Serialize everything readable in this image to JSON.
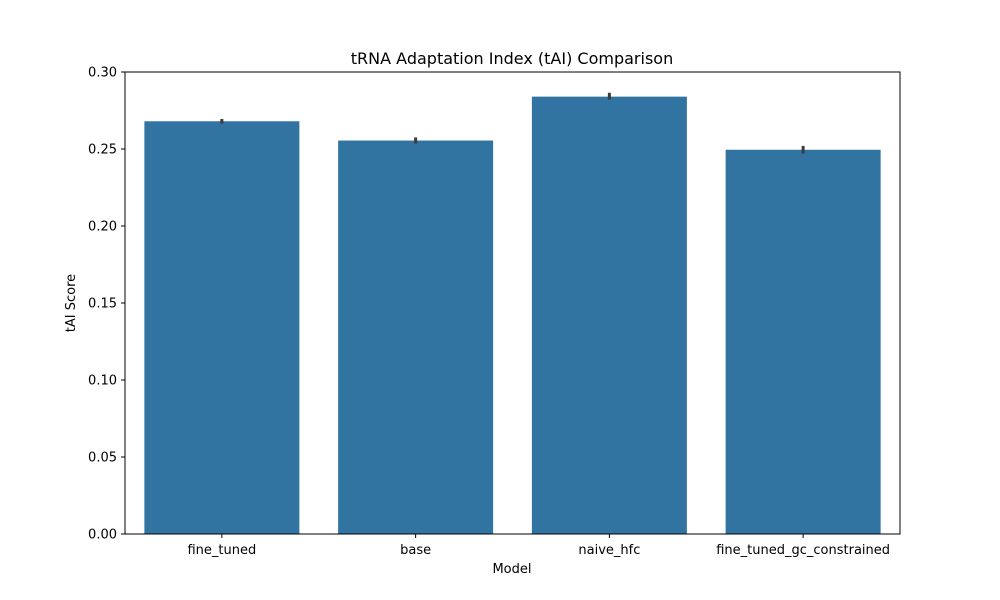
{
  "chart_data": {
    "type": "bar",
    "title": "tRNA Adaptation Index (tAI) Comparison",
    "xlabel": "Model",
    "ylabel": "tAI Score",
    "categories": [
      "fine_tuned",
      "base",
      "naive_hfc",
      "fine_tuned_gc_constrained"
    ],
    "values": [
      0.268,
      0.2555,
      0.284,
      0.2495
    ],
    "error_low": [
      0.2665,
      0.2535,
      0.282,
      0.247
    ],
    "error_high": [
      0.2695,
      0.2575,
      0.2865,
      0.252
    ],
    "ylim": [
      0,
      0.3
    ],
    "yticks": [
      0.0,
      0.05,
      0.1,
      0.15,
      0.2,
      0.25,
      0.3
    ],
    "ytick_labels": [
      "0.00",
      "0.05",
      "0.10",
      "0.15",
      "0.20",
      "0.25",
      "0.30"
    ],
    "grid": false,
    "bar_color": "#3274a1",
    "error_color": "#3b3b3b"
  }
}
